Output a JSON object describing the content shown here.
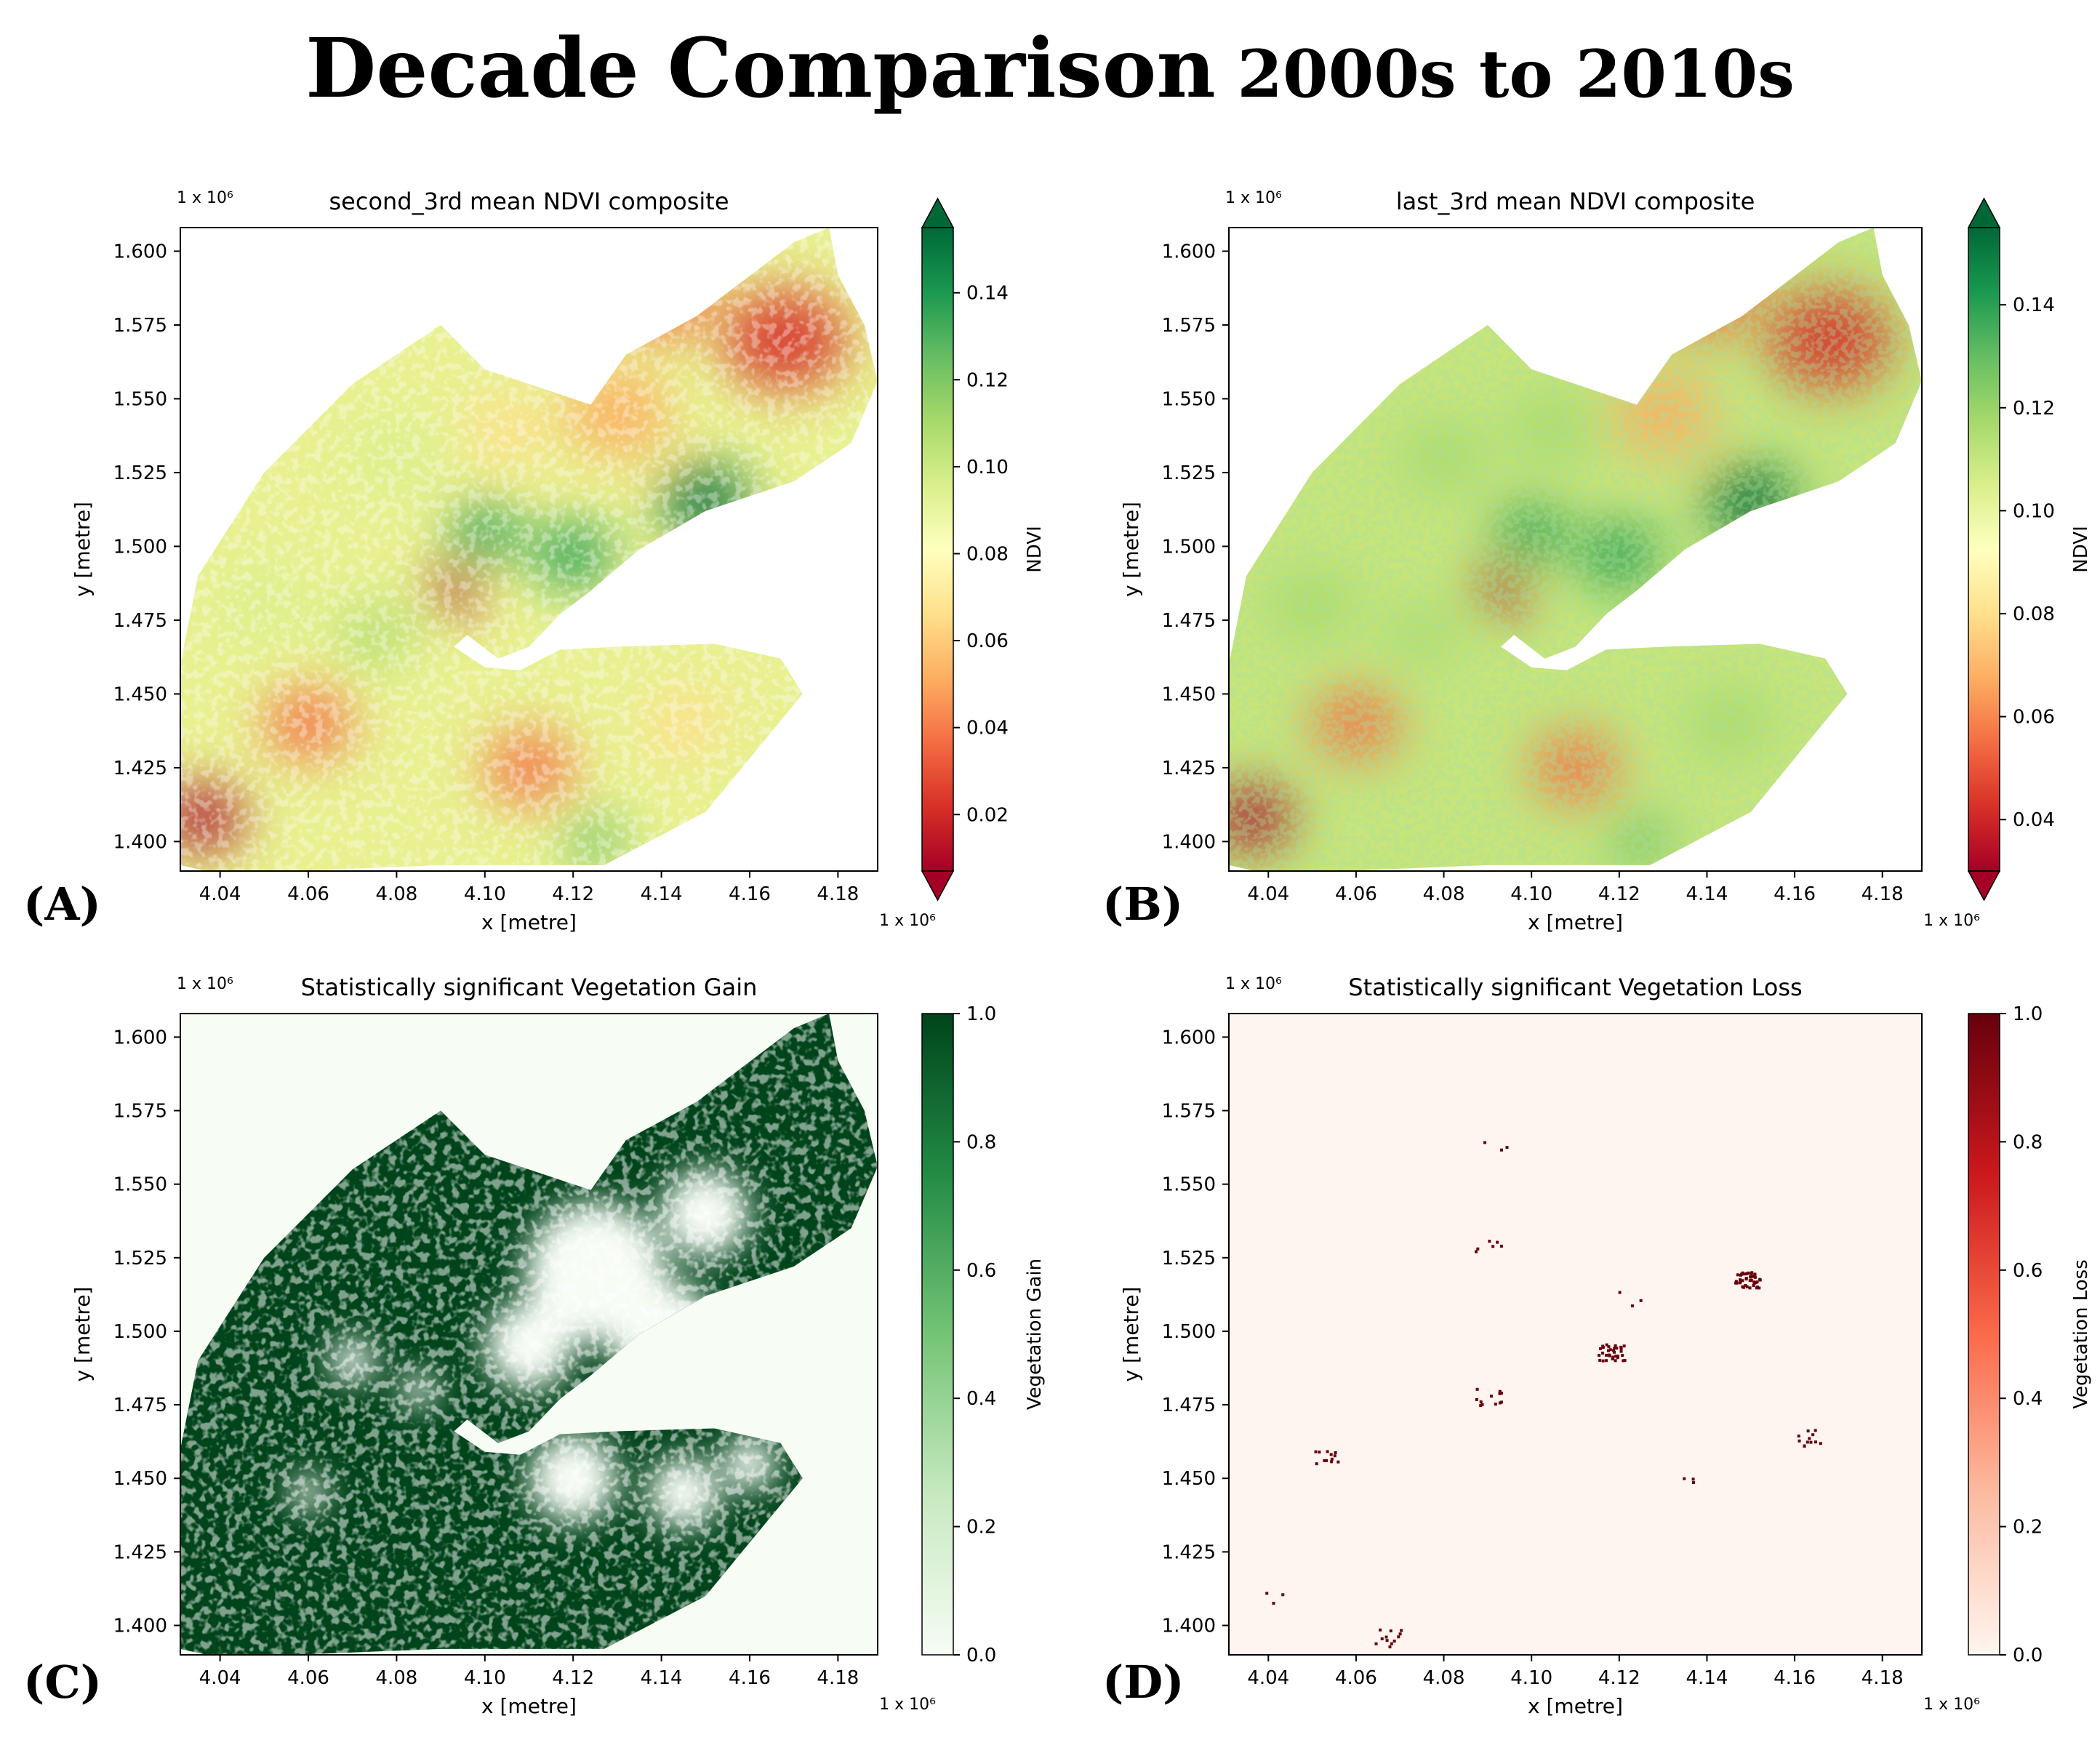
{
  "figure": {
    "title_main": "Decade Comparison",
    "title_sub": "2000s to 2010s"
  },
  "colors": {
    "ndvi_stops": [
      "#a50026",
      "#d73027",
      "#f46d43",
      "#fdae61",
      "#fee08b",
      "#ffffbf",
      "#d9ef8b",
      "#a6d96a",
      "#66bd63",
      "#1a9850",
      "#006837"
    ],
    "gain_low": "#f7fcf5",
    "gain_high": "#00441b",
    "loss_low": "#fff5f0",
    "loss_high": "#67000d",
    "axis": "#000000"
  },
  "chart_data": [
    {
      "panel_label": "(A)",
      "type": "heatmap",
      "title": "second_3rd mean NDVI composite",
      "xlabel": "x [metre]",
      "ylabel": "y [metre]",
      "x_offset_text": "1 x 10⁶",
      "y_offset_text": "1 x 10⁶",
      "xlim": [
        4.031,
        4.189
      ],
      "ylim": [
        1.39,
        1.608
      ],
      "x_ticks": [
        "4.04",
        "4.06",
        "4.08",
        "4.10",
        "4.12",
        "4.14",
        "4.16",
        "4.18"
      ],
      "y_ticks": [
        "1.400",
        "1.425",
        "1.450",
        "1.475",
        "1.500",
        "1.525",
        "1.550",
        "1.575",
        "1.600"
      ],
      "colorbar_label": "NDVI",
      "colorbar_range": [
        0.007,
        0.155
      ],
      "colorbar_ticks": [
        "0.02",
        "0.04",
        "0.06",
        "0.08",
        "0.10",
        "0.12",
        "0.14"
      ],
      "colorbar_extend": "both",
      "colormap": "RdYlGn"
    },
    {
      "panel_label": "(B)",
      "type": "heatmap",
      "title": "last_3rd mean NDVI composite",
      "xlabel": "x [metre]",
      "ylabel": "y [metre]",
      "x_offset_text": "1 x 10⁶",
      "y_offset_text": "1 x 10⁶",
      "xlim": [
        4.031,
        4.189
      ],
      "ylim": [
        1.39,
        1.608
      ],
      "x_ticks": [
        "4.04",
        "4.06",
        "4.08",
        "4.10",
        "4.12",
        "4.14",
        "4.16",
        "4.18"
      ],
      "y_ticks": [
        "1.400",
        "1.425",
        "1.450",
        "1.475",
        "1.500",
        "1.525",
        "1.550",
        "1.575",
        "1.600"
      ],
      "colorbar_label": "NDVI",
      "colorbar_range": [
        0.03,
        0.155
      ],
      "colorbar_ticks": [
        "0.04",
        "0.06",
        "0.08",
        "0.10",
        "0.12",
        "0.14"
      ],
      "colorbar_extend": "both",
      "colormap": "RdYlGn"
    },
    {
      "panel_label": "(C)",
      "type": "heatmap",
      "title": "Statistically significant Vegetation Gain",
      "xlabel": "x [metre]",
      "ylabel": "y [metre]",
      "x_offset_text": "1 x 10⁶",
      "y_offset_text": "1 x 10⁶",
      "xlim": [
        4.031,
        4.189
      ],
      "ylim": [
        1.39,
        1.608
      ],
      "x_ticks": [
        "4.04",
        "4.06",
        "4.08",
        "4.10",
        "4.12",
        "4.14",
        "4.16",
        "4.18"
      ],
      "y_ticks": [
        "1.400",
        "1.425",
        "1.450",
        "1.475",
        "1.500",
        "1.525",
        "1.550",
        "1.575",
        "1.600"
      ],
      "colorbar_label": "Vegetation Gain",
      "colorbar_range": [
        0.0,
        1.0
      ],
      "colorbar_ticks": [
        "0.0",
        "0.2",
        "0.4",
        "0.6",
        "0.8",
        "1.0"
      ],
      "colorbar_extend": "neither",
      "colormap": "Greens"
    },
    {
      "panel_label": "(D)",
      "type": "heatmap",
      "title": "Statistically significant Vegetation Loss",
      "xlabel": "x [metre]",
      "ylabel": "y [metre]",
      "x_offset_text": "1 x 10⁶",
      "y_offset_text": "1 x 10⁶",
      "xlim": [
        4.031,
        4.189
      ],
      "ylim": [
        1.39,
        1.608
      ],
      "x_ticks": [
        "4.04",
        "4.06",
        "4.08",
        "4.10",
        "4.12",
        "4.14",
        "4.16",
        "4.18"
      ],
      "y_ticks": [
        "1.400",
        "1.425",
        "1.450",
        "1.475",
        "1.500",
        "1.525",
        "1.550",
        "1.575",
        "1.600"
      ],
      "colorbar_label": "Vegetation Loss",
      "colorbar_range": [
        0.0,
        1.0
      ],
      "colorbar_ticks": [
        "0.0",
        "0.2",
        "0.4",
        "0.6",
        "0.8",
        "1.0"
      ],
      "colorbar_extend": "neither",
      "colormap": "Reds"
    }
  ]
}
